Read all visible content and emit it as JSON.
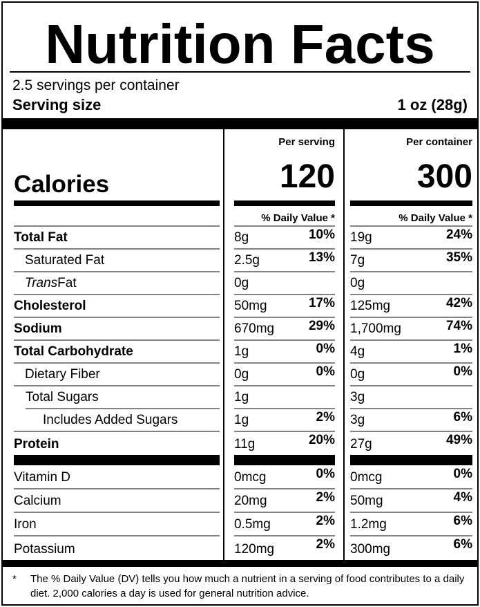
{
  "label": {
    "title": "Nutrition Facts",
    "servings_per_container": "2.5 servings per container",
    "serving_size_label": "Serving size",
    "serving_size_value": "1 oz (28g)",
    "calories_label": "Calories",
    "columns": {
      "serving": {
        "header": "Per serving",
        "calories": "120",
        "daily_value_header": "% Daily Value *"
      },
      "container": {
        "header": "Per container",
        "calories": "300",
        "daily_value_header": "% Daily Value *"
      }
    },
    "rows": [
      {
        "name": "Total Fat",
        "serving_amount": "8g",
        "serving_dv": "10%",
        "container_amount": "19g",
        "container_dv": "24%"
      },
      {
        "name": "Saturated Fat",
        "serving_amount": "2.5g",
        "serving_dv": "13%",
        "container_amount": "7g",
        "container_dv": "35%"
      },
      {
        "name_italic": "Trans",
        "name_rest": " Fat",
        "serving_amount": "0g",
        "serving_dv": "",
        "container_amount": "0g",
        "container_dv": ""
      },
      {
        "name": "Cholesterol",
        "serving_amount": "50mg",
        "serving_dv": "17%",
        "container_amount": "125mg",
        "container_dv": "42%"
      },
      {
        "name": "Sodium",
        "serving_amount": "670mg",
        "serving_dv": "29%",
        "container_amount": "1,700mg",
        "container_dv": "74%"
      },
      {
        "name": "Total Carbohydrate",
        "serving_amount": "1g",
        "serving_dv": "0%",
        "container_amount": "4g",
        "container_dv": "1%"
      },
      {
        "name": "Dietary Fiber",
        "serving_amount": "0g",
        "serving_dv": "0%",
        "container_amount": "0g",
        "container_dv": "0%"
      },
      {
        "name": "Total Sugars",
        "serving_amount": "1g",
        "serving_dv": "",
        "container_amount": "3g",
        "container_dv": ""
      },
      {
        "name": "Includes Added Sugars",
        "serving_amount": "1g",
        "serving_dv": "2%",
        "container_amount": "3g",
        "container_dv": "6%"
      },
      {
        "name": "Protein",
        "serving_amount": "11g",
        "serving_dv": "20%",
        "container_amount": "27g",
        "container_dv": "49%"
      },
      {
        "name": "Vitamin D",
        "serving_amount": "0mcg",
        "serving_dv": "0%",
        "container_amount": "0mcg",
        "container_dv": "0%"
      },
      {
        "name": "Calcium",
        "serving_amount": "20mg",
        "serving_dv": "2%",
        "container_amount": "50mg",
        "container_dv": "4%"
      },
      {
        "name": "Iron",
        "serving_amount": "0.5mg",
        "serving_dv": "2%",
        "container_amount": "1.2mg",
        "container_dv": "6%"
      },
      {
        "name": "Potassium",
        "serving_amount": "120mg",
        "serving_dv": "2%",
        "container_amount": "300mg",
        "container_dv": "6%"
      }
    ],
    "footnote": {
      "marker": "*",
      "text": "The % Daily Value (DV) tells you how much a nutrient in a serving of food contributes to a daily diet. 2,000 calories a day is used for general nutrition advice."
    },
    "colors": {
      "line_gray": "#828282",
      "bar_black": "#000000"
    }
  }
}
